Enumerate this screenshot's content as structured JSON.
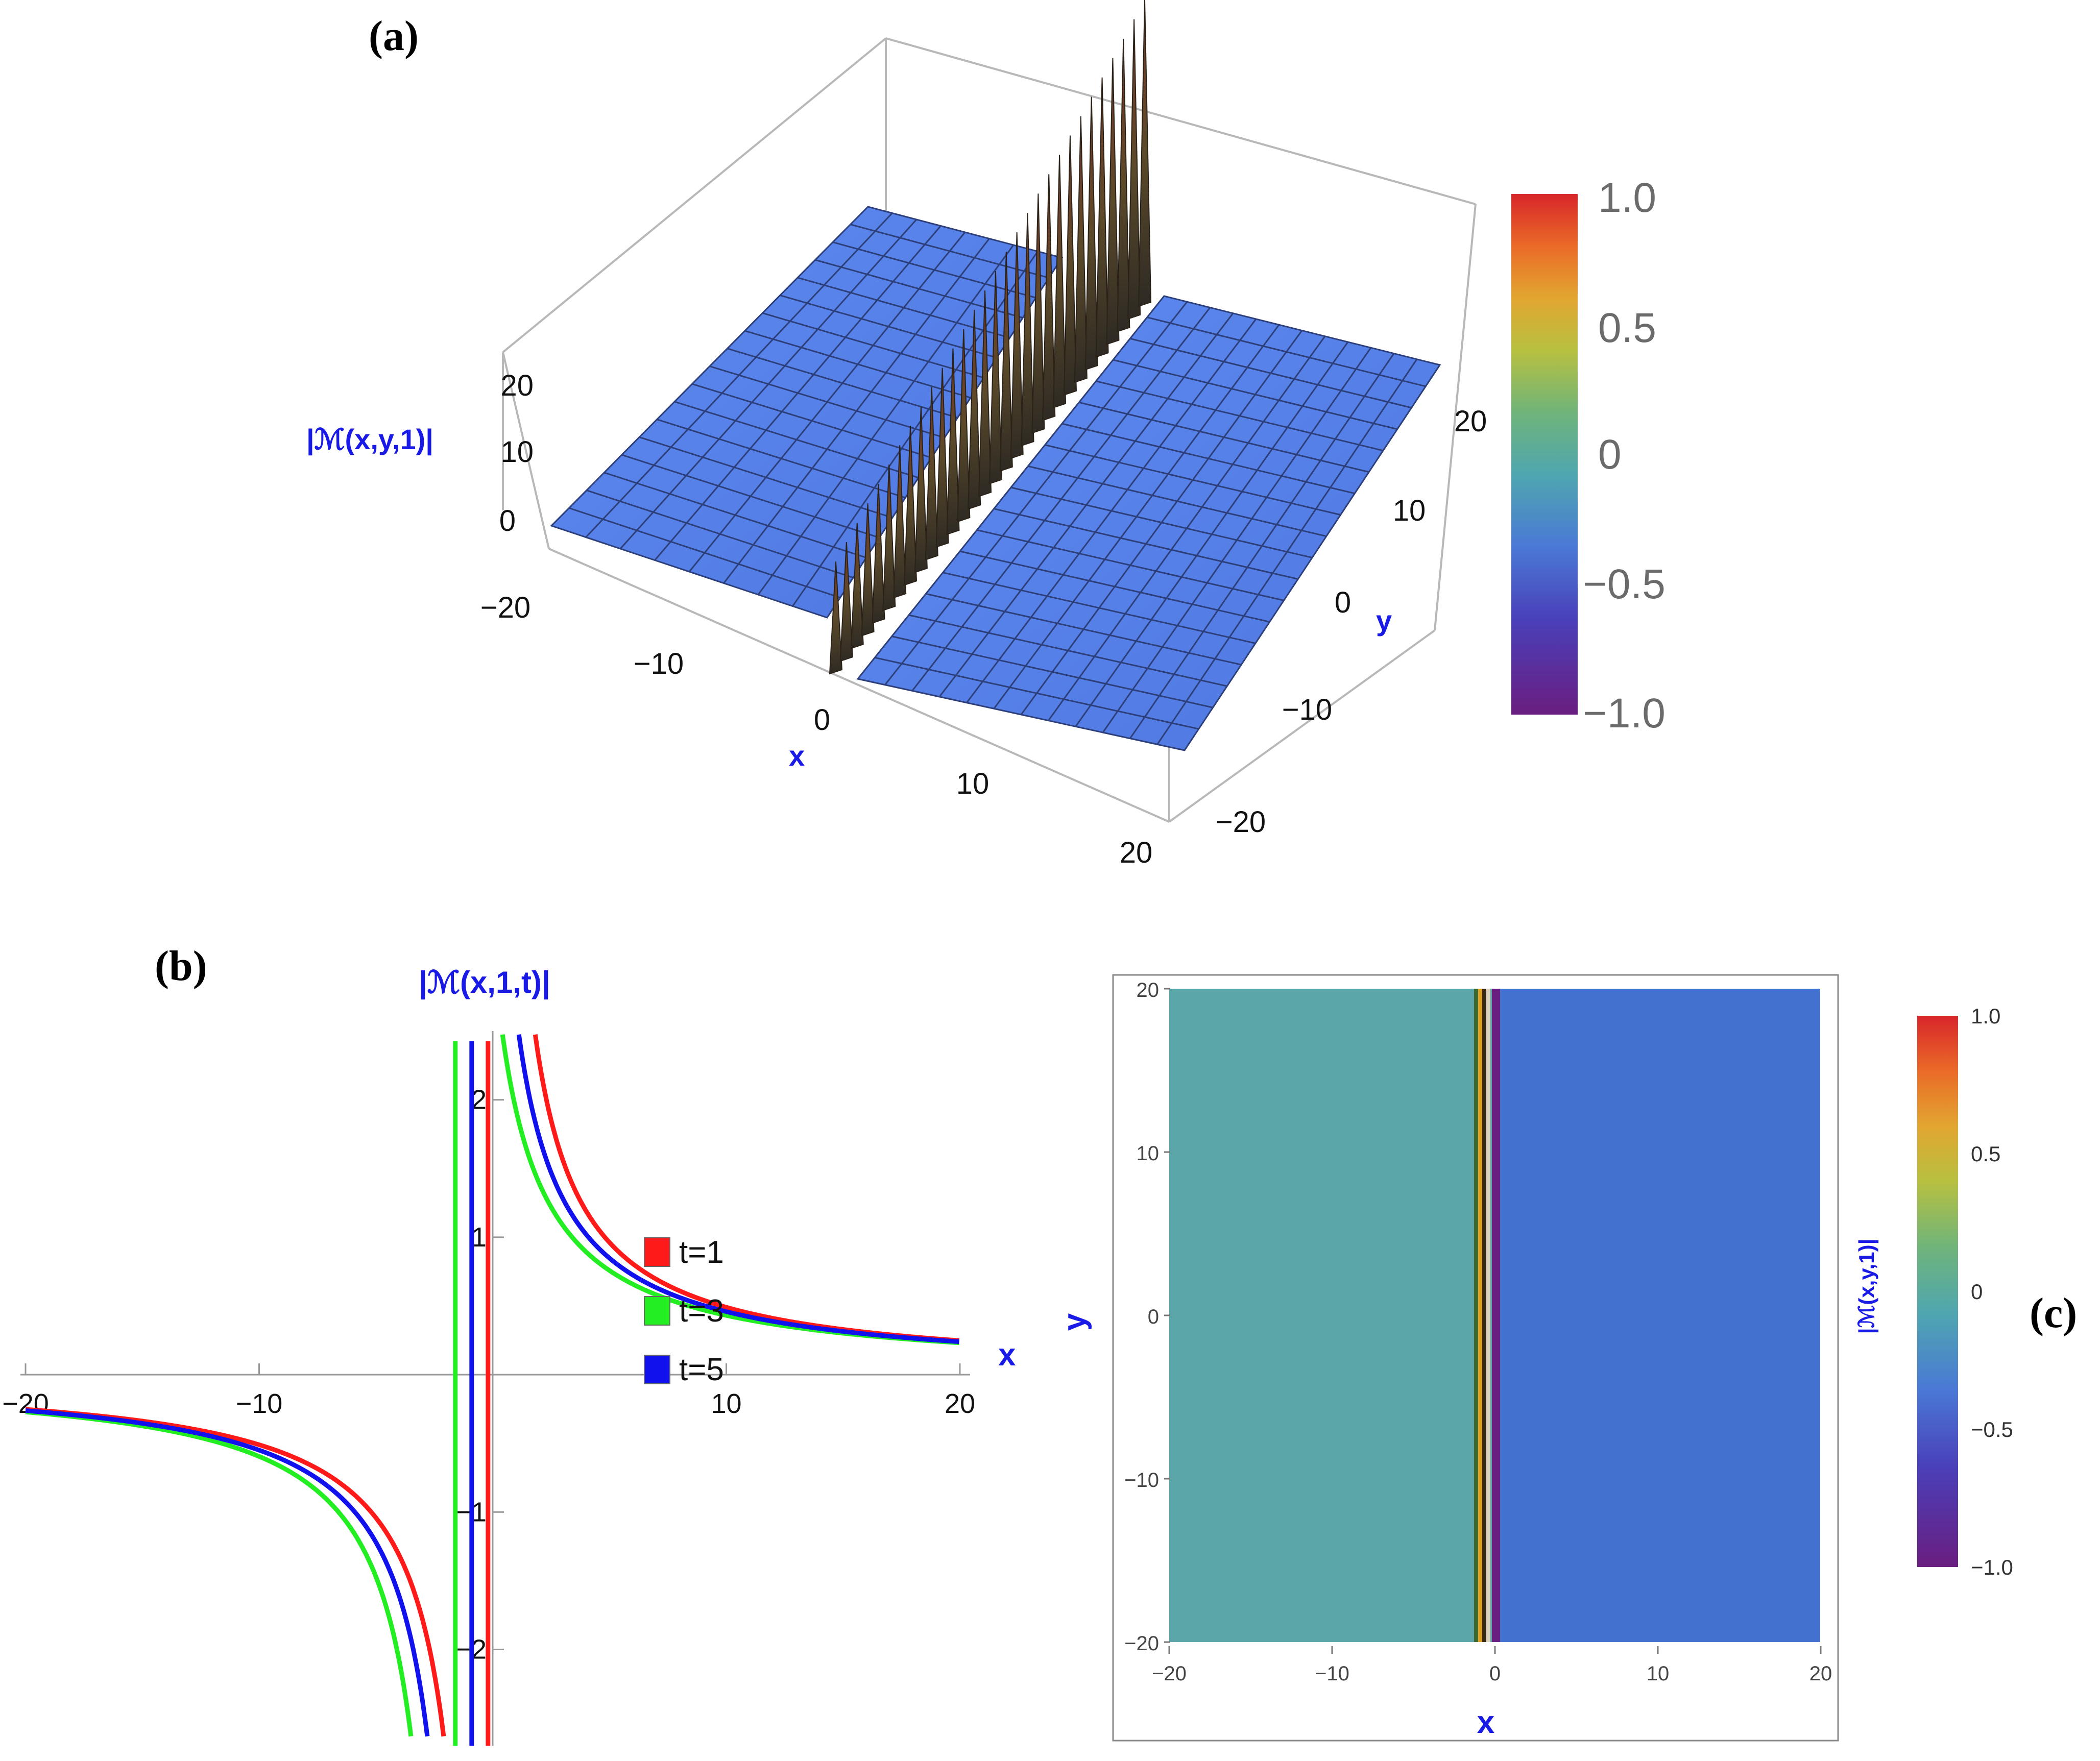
{
  "colors": {
    "surface": "#5a84ec",
    "spike": "#4a2e24",
    "contour_left": "#5aa6a8",
    "contour_right": "#4371cf",
    "series_t1": "#ff1a1a",
    "series_t3": "#22ee22",
    "series_t5": "#1111ee",
    "axis_label": "#1a1ae6"
  },
  "chart_data": [
    {
      "id": "a",
      "panel_label": "(a)",
      "type": "surface3d",
      "zlabel": "|ℳ(x,y,1)|",
      "xlabel": "x",
      "ylabel": "y",
      "x_ticks": [
        "−20",
        "−10",
        "0",
        "10",
        "20"
      ],
      "y_ticks": [
        "−20",
        "−10",
        "0",
        "10",
        "20"
      ],
      "z_ticks": [
        "0",
        "10",
        "20"
      ],
      "xlim": [
        -20,
        20
      ],
      "ylim": [
        -20,
        20
      ],
      "colorbar": {
        "ticks": [
          "1.0",
          "0.5",
          "0",
          "−0.5",
          "−1.0"
        ],
        "range": [
          -1,
          1
        ]
      }
    },
    {
      "id": "b",
      "panel_label": "(b)",
      "type": "line",
      "xlabel": "x",
      "ylabel": "|ℳ(x,1,t)|",
      "x_ticks": [
        "−20",
        "−10",
        "10",
        "20"
      ],
      "x_tick_values": [
        -20,
        -10,
        10,
        20
      ],
      "y_ticks": [
        "2",
        "1",
        "−1",
        "−2"
      ],
      "y_tick_values": [
        2,
        1,
        -1,
        -2
      ],
      "xlim": [
        -20,
        20
      ],
      "ylim": [
        -2.7,
        2.5
      ],
      "series": [
        {
          "name": "t=1",
          "color": "#ff1a1a",
          "pole": -0.2
        },
        {
          "name": "t=3",
          "color": "#22ee22",
          "pole": -1.6
        },
        {
          "name": "t=5",
          "color": "#1111ee",
          "pole": -0.9
        }
      ],
      "legend": [
        "t=1",
        "t=3",
        "t=5"
      ]
    },
    {
      "id": "c",
      "panel_label": "(c)",
      "type": "heatmap",
      "xlabel": "x",
      "ylabel": "y",
      "x_ticks": [
        "−20",
        "−10",
        "0",
        "10",
        "20"
      ],
      "y_ticks": [
        "20",
        "10",
        "0",
        "−10",
        "−20"
      ],
      "xlim": [
        -20,
        20
      ],
      "ylim": [
        -20,
        20
      ],
      "boundary_x": [
        -1.5,
        0.5
      ],
      "colorbar_label": "|ℳ(x,y,1)|",
      "colorbar": {
        "ticks": [
          "1.0",
          "0.5",
          "0",
          "−0.5",
          "−1.0"
        ],
        "range": [
          -1,
          1
        ]
      }
    }
  ]
}
